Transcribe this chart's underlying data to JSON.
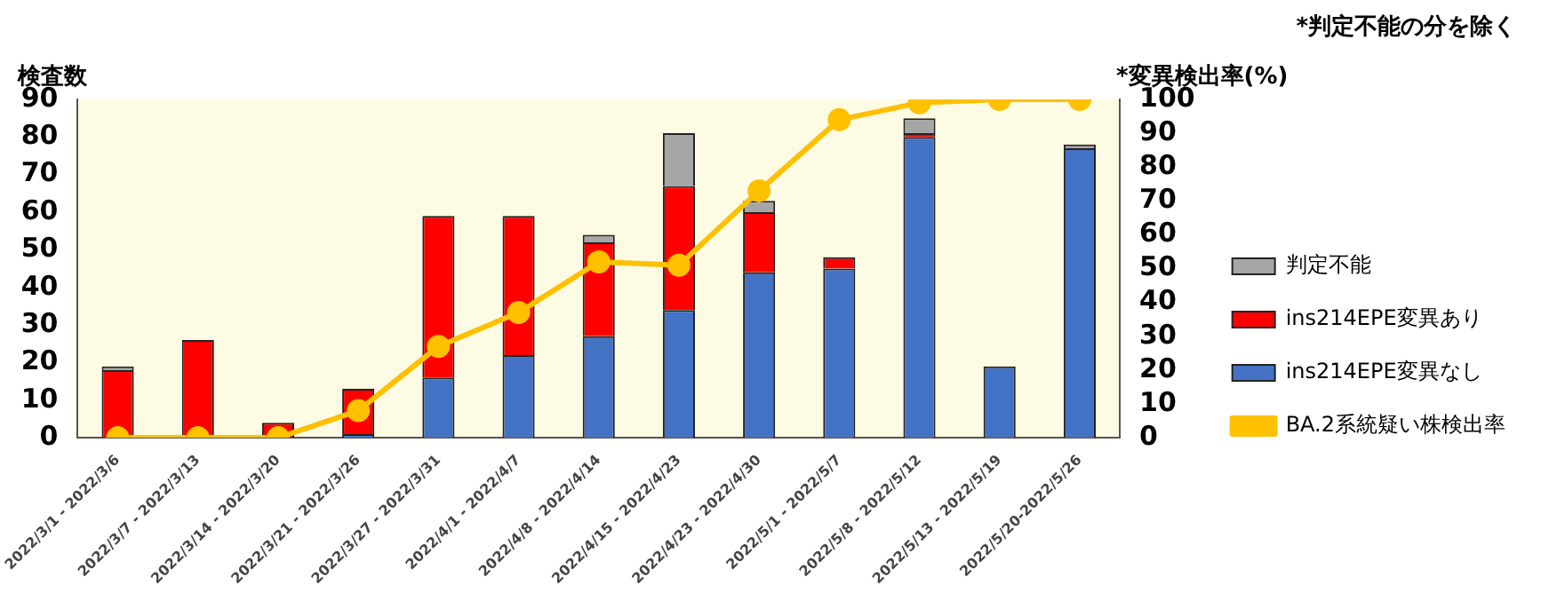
{
  "chart_data": {
    "type": "bar",
    "stacked": true,
    "ylabel": "検査数",
    "y2label": "*変異検出率(%)",
    "annotations": [
      "*判定不能の分を除く"
    ],
    "categories": [
      "2022/3/1 - 2022/3/6",
      "2022/3/7 - 2022/3/13",
      "2022/3/14 - 2022/3/20",
      "2022/3/21 - 2022/3/26",
      "2022/3/27 - 2022/3/31",
      "2022/4/1 - 2022/4/7",
      "2022/4/8 - 2022/4/14",
      "2022/4/15 - 2022/4/23",
      "2022/4/23 - 2022/4/30",
      "2022/5/1 - 2022/5/7",
      "2022/5/8 - 2022/5/12",
      "2022/5/13 - 2022/5/19",
      "2022/5/20-2022/5/26"
    ],
    "series": [
      {
        "name": "ins214EPE変異なし",
        "color": "#4472c4",
        "values": [
          0,
          0,
          0,
          1,
          16,
          22,
          27,
          34,
          44,
          45,
          80,
          19,
          77
        ]
      },
      {
        "name": "ins214EPE変異あり",
        "color": "#ff0000",
        "values": [
          18,
          26,
          4,
          12,
          43,
          37,
          25,
          33,
          16,
          3,
          1,
          0,
          0
        ]
      },
      {
        "name": "判定不能",
        "color": "#a6a6a6",
        "values": [
          1,
          0,
          0,
          0,
          0,
          0,
          2,
          14,
          3,
          0,
          4,
          0,
          1
        ]
      },
      {
        "name": "BA.2系統疑い株検出率",
        "type": "line",
        "axis": "y2",
        "color": "#ffc000",
        "values": [
          0,
          0,
          0,
          8,
          27,
          37,
          52,
          51,
          73,
          94,
          99,
          100,
          100
        ]
      }
    ],
    "ylim": [
      0,
      90
    ],
    "yticks": [
      0,
      10,
      20,
      30,
      40,
      50,
      60,
      70,
      80,
      90
    ],
    "y2lim": [
      0,
      100
    ],
    "y2ticks": [
      0,
      10,
      20,
      30,
      40,
      50,
      60,
      70,
      80,
      90,
      100
    ],
    "legend": "right",
    "marker": "circle",
    "grid": false
  }
}
